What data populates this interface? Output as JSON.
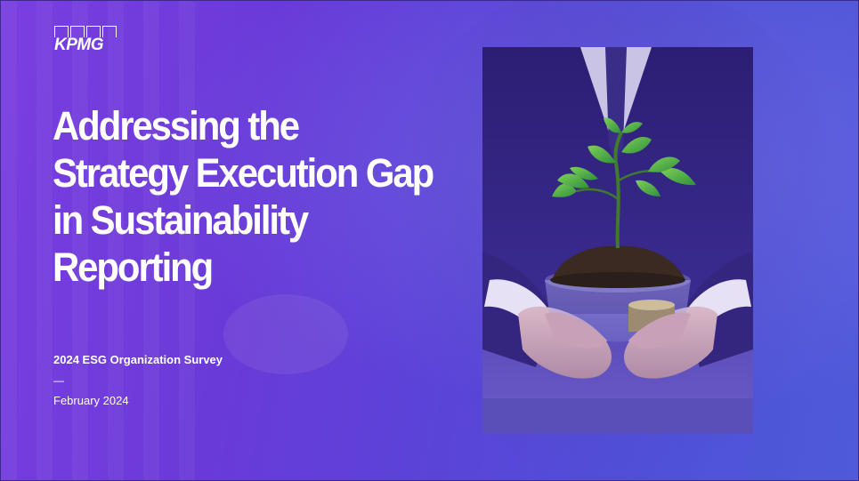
{
  "brand": {
    "logo_text": "KPMG"
  },
  "slide": {
    "title": "Addressing the Strategy Execution Gap in Sustainability Reporting",
    "subtitle": "2024 ESG Organization Survey",
    "separator": "—",
    "date": "February 2024"
  },
  "colors": {
    "background_start": "#7a3ee0",
    "background_end": "#4e5ad9",
    "text": "#ffffff"
  },
  "image": {
    "icon": "plant-in-hands-photo"
  }
}
